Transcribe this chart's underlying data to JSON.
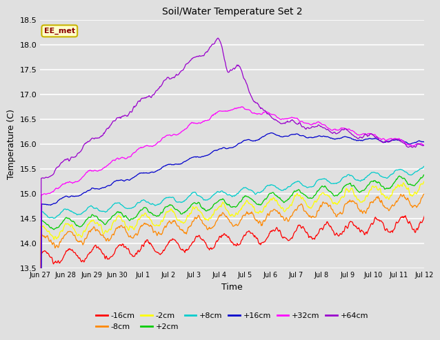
{
  "title": "Soil/Water Temperature Set 2",
  "xlabel": "Time",
  "ylabel": "Temperature (C)",
  "ylim": [
    13.5,
    18.5
  ],
  "yticks": [
    13.5,
    14.0,
    14.5,
    15.0,
    15.5,
    16.0,
    16.5,
    17.0,
    17.5,
    18.0,
    18.5
  ],
  "bg_color": "#e0e0e0",
  "plot_bg_color": "#e0e0e0",
  "annotation_text": "EE_met",
  "annotation_bg": "#ffffcc",
  "annotation_border": "#c8b400",
  "annotation_text_color": "#8b0000",
  "series": [
    {
      "label": "-16cm",
      "color": "#ff0000"
    },
    {
      "label": "-8cm",
      "color": "#ff8800"
    },
    {
      "label": "-2cm",
      "color": "#ffff00"
    },
    {
      "label": "+2cm",
      "color": "#00cc00"
    },
    {
      "label": "+8cm",
      "color": "#00cccc"
    },
    {
      "label": "+16cm",
      "color": "#0000cc"
    },
    {
      "label": "+32cm",
      "color": "#ff00ff"
    },
    {
      "label": "+64cm",
      "color": "#9900cc"
    }
  ],
  "xtick_labels": [
    "Jun 27",
    "Jun 28",
    "Jun 29",
    "Jun 30",
    "Jul 1",
    "Jul 2",
    "Jul 3",
    "Jul 4",
    "Jul 5",
    "Jul 6",
    "Jul 7",
    "Jul 8",
    "Jul 9",
    "Jul 10",
    "Jul 11",
    "Jul 12"
  ],
  "n_days": 16,
  "points_per_day": 48
}
